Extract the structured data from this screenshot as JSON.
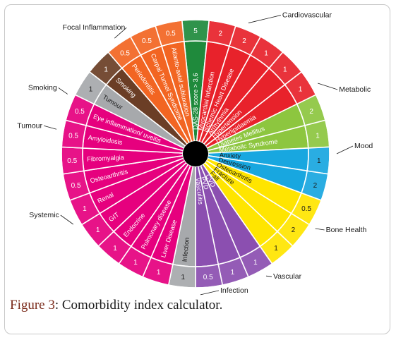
{
  "caption": {
    "label": "Figure 3",
    "text": ": Comorbidity index calculator."
  },
  "chart_data": {
    "type": "pie",
    "title": "",
    "center_color": "#000000",
    "segments": [
      {
        "label": "DAS-28 score > 3,6",
        "weight": "5",
        "group": "",
        "color": "#1f8a3c",
        "dark": false
      },
      {
        "label": "Myocardial Infarction",
        "weight": "2",
        "group": "Cardiovascular",
        "color": "#e8222b",
        "dark": false
      },
      {
        "label": "Ischemic Heart Disease",
        "weight": "2",
        "group": "Cardiovascular",
        "color": "#e8222b",
        "dark": false
      },
      {
        "label": "Arrhythmia",
        "weight": "1",
        "group": "Cardiovascular",
        "color": "#e8222b",
        "dark": false
      },
      {
        "label": "Hypertension",
        "weight": "1",
        "group": "Cardiovascular",
        "color": "#e8222b",
        "dark": false
      },
      {
        "label": "Hyperlipidaemia",
        "weight": "1",
        "group": "Cardiovascular",
        "color": "#e8222b",
        "dark": false
      },
      {
        "label": "Diabetes Mellitus",
        "weight": "2",
        "group": "Metabolic",
        "color": "#8dc63f",
        "dark": false
      },
      {
        "label": "Metabolic Syndrome",
        "weight": "1",
        "group": "Metabolic",
        "color": "#8dc63f",
        "dark": false
      },
      {
        "label": "Anxiety",
        "weight": "1",
        "group": "Mood",
        "color": "#18a7e0",
        "dark": true
      },
      {
        "label": "Depression",
        "weight": "2",
        "group": "Mood",
        "color": "#18a7e0",
        "dark": true
      },
      {
        "label": "Osteoarthritis",
        "weight": "0.5",
        "group": "Bone Health",
        "color": "#ffe500",
        "dark": true
      },
      {
        "label": "Fracture",
        "weight": "2",
        "group": "Bone Health",
        "color": "#ffe500",
        "dark": true
      },
      {
        "label": "Fall",
        "weight": "1",
        "group": "Bone Health",
        "color": "#ffe500",
        "dark": true
      },
      {
        "label": "CVD",
        "weight": "1",
        "group": "Vascular",
        "color": "#8b4fb0",
        "dark": false
      },
      {
        "label": "PVD",
        "weight": "1",
        "group": "Vascular",
        "color": "#8b4fb0",
        "dark": false
      },
      {
        "label": "Vasculitis",
        "weight": "0.5",
        "group": "Vascular",
        "color": "#8b4fb0",
        "dark": false
      },
      {
        "label": "Infection",
        "weight": "1",
        "group": "Infection",
        "color": "#a7a9ac",
        "dark": true
      },
      {
        "label": "Liver Disease",
        "weight": "1",
        "group": "Systemic",
        "color": "#e6007e",
        "dark": false
      },
      {
        "label": "Pulmonary disease",
        "weight": "1",
        "group": "Systemic",
        "color": "#e6007e",
        "dark": false
      },
      {
        "label": "Endocrine",
        "weight": "1",
        "group": "Systemic",
        "color": "#e6007e",
        "dark": false
      },
      {
        "label": "GIT",
        "weight": "1",
        "group": "Systemic",
        "color": "#e6007e",
        "dark": false
      },
      {
        "label": "Renal",
        "weight": "1",
        "group": "Systemic",
        "color": "#e6007e",
        "dark": false
      },
      {
        "label": "Osteoarthritis",
        "weight": "0.5",
        "group": "Systemic",
        "color": "#e6007e",
        "dark": false
      },
      {
        "label": "Fibromyalgia",
        "weight": "0.5",
        "group": "Systemic",
        "color": "#e6007e",
        "dark": false
      },
      {
        "label": "Amyloidosis",
        "weight": "0.5",
        "group": "Systemic",
        "color": "#e6007e",
        "dark": false
      },
      {
        "label": "Eye inflammation/ uveitis",
        "weight": "0.5",
        "group": "Systemic",
        "color": "#e6007e",
        "dark": false
      },
      {
        "label": "Tumour",
        "weight": "1",
        "group": "Tumour",
        "color": "#a7a9ac",
        "dark": true
      },
      {
        "label": "Smoking",
        "weight": "1",
        "group": "Smoking",
        "color": "#6b3e26",
        "dark": false
      },
      {
        "label": "Periodontitis",
        "weight": "0.5",
        "group": "Focal Inflammation",
        "color": "#f26522",
        "dark": false
      },
      {
        "label": "Carpal Tunnel Syndrome",
        "weight": "0.5",
        "group": "Focal Inflammation",
        "color": "#f26522",
        "dark": false
      },
      {
        "label": "Atlanto-axial subluxation",
        "weight": "0.5",
        "group": "Focal Inflammation",
        "color": "#f26522",
        "dark": false
      }
    ],
    "group_labels": [
      "Cardiovascular",
      "Metabolic",
      "Mood",
      "Bone Health",
      "Vascular",
      "Infection",
      "Systemic",
      "Tumour",
      "Smoking",
      "Focal Inflammation"
    ]
  }
}
